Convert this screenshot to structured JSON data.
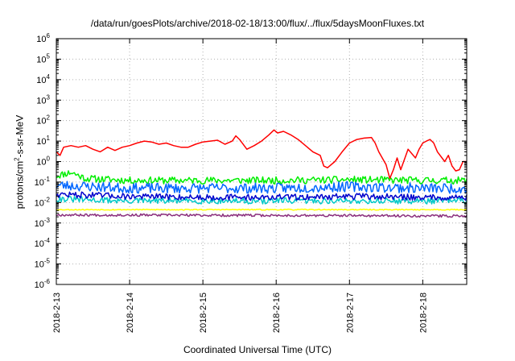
{
  "chart_data": {
    "type": "line",
    "title": "/data/run/goesPlots/archive/2018-02-18/13:00/flux/../flux/5daysMoonFluxes.txt",
    "xlabel": "Coordinated Universal Time (UTC)",
    "ylabel": {
      "prefix": "protons/cm",
      "sup": "2",
      "suffix": "-s-sr-MeV"
    },
    "xlim": [
      0,
      5.6
    ],
    "ylim": [
      1e-06,
      1000000.0
    ],
    "yscale": "log",
    "grid": true,
    "x_ticks": [
      {
        "x": 0,
        "label": "2018-2-13"
      },
      {
        "x": 1,
        "label": "2018-2-14"
      },
      {
        "x": 2,
        "label": "2018-2-15"
      },
      {
        "x": 3,
        "label": "2018-2-16"
      },
      {
        "x": 4,
        "label": "2018-2-17"
      },
      {
        "x": 5,
        "label": "2018-2-18"
      }
    ],
    "y_ticks": [
      {
        "value": 1e-06,
        "base": "10",
        "exp": "-6"
      },
      {
        "value": 1e-05,
        "base": "10",
        "exp": "-5"
      },
      {
        "value": 0.0001,
        "base": "10",
        "exp": "-4"
      },
      {
        "value": 0.001,
        "base": "10",
        "exp": "-3"
      },
      {
        "value": 0.01,
        "base": "10",
        "exp": "-2"
      },
      {
        "value": 0.1,
        "base": "10",
        "exp": "-1"
      },
      {
        "value": 1,
        "base": "10",
        "exp": "0"
      },
      {
        "value": 10,
        "base": "10",
        "exp": "1"
      },
      {
        "value": 100,
        "base": "10",
        "exp": "2"
      },
      {
        "value": 1000,
        "base": "10",
        "exp": "3"
      },
      {
        "value": 10000,
        "base": "10",
        "exp": "4"
      },
      {
        "value": 100000,
        "base": "10",
        "exp": "5"
      },
      {
        "value": 1000000,
        "base": "10",
        "exp": "6"
      }
    ],
    "series": [
      {
        "color": "#ff0000",
        "points": [
          [
            0,
            3
          ],
          [
            0.05,
            2
          ],
          [
            0.1,
            5
          ],
          [
            0.2,
            6
          ],
          [
            0.3,
            5
          ],
          [
            0.4,
            6
          ],
          [
            0.5,
            4
          ],
          [
            0.6,
            3
          ],
          [
            0.7,
            5
          ],
          [
            0.8,
            3.5
          ],
          [
            0.9,
            5
          ],
          [
            1.0,
            6
          ],
          [
            1.1,
            8
          ],
          [
            1.2,
            10
          ],
          [
            1.3,
            9
          ],
          [
            1.4,
            7
          ],
          [
            1.5,
            8
          ],
          [
            1.6,
            6
          ],
          [
            1.7,
            5
          ],
          [
            1.8,
            5
          ],
          [
            1.9,
            7
          ],
          [
            2.0,
            9
          ],
          [
            2.1,
            10
          ],
          [
            2.2,
            11
          ],
          [
            2.3,
            7
          ],
          [
            2.4,
            10
          ],
          [
            2.45,
            18
          ],
          [
            2.5,
            12
          ],
          [
            2.6,
            4
          ],
          [
            2.7,
            6
          ],
          [
            2.8,
            10
          ],
          [
            2.9,
            20
          ],
          [
            2.97,
            35
          ],
          [
            3.02,
            25
          ],
          [
            3.1,
            30
          ],
          [
            3.2,
            20
          ],
          [
            3.3,
            12
          ],
          [
            3.4,
            6
          ],
          [
            3.5,
            3
          ],
          [
            3.6,
            2
          ],
          [
            3.65,
            0.6
          ],
          [
            3.7,
            0.5
          ],
          [
            3.8,
            1
          ],
          [
            3.9,
            3
          ],
          [
            4.0,
            8
          ],
          [
            4.1,
            12
          ],
          [
            4.2,
            14
          ],
          [
            4.3,
            15
          ],
          [
            4.35,
            8
          ],
          [
            4.4,
            3
          ],
          [
            4.5,
            0.7
          ],
          [
            4.55,
            0.15
          ],
          [
            4.6,
            0.4
          ],
          [
            4.65,
            1.5
          ],
          [
            4.7,
            0.4
          ],
          [
            4.8,
            4
          ],
          [
            4.9,
            1.5
          ],
          [
            4.95,
            4
          ],
          [
            5.0,
            8
          ],
          [
            5.05,
            10
          ],
          [
            5.1,
            12
          ],
          [
            5.15,
            8
          ],
          [
            5.2,
            3
          ],
          [
            5.3,
            1
          ],
          [
            5.35,
            2
          ],
          [
            5.4,
            0.6
          ],
          [
            5.45,
            0.35
          ],
          [
            5.5,
            0.4
          ],
          [
            5.55,
            1.0
          ],
          [
            5.6,
            1.0
          ]
        ]
      },
      {
        "color": "#00ee00",
        "base": [
          [
            0,
            0.2
          ],
          [
            0.2,
            0.3
          ],
          [
            0.4,
            0.15
          ],
          [
            1,
            0.12
          ],
          [
            2,
            0.12
          ],
          [
            3,
            0.12
          ],
          [
            4,
            0.13
          ],
          [
            5,
            0.12
          ],
          [
            5.6,
            0.12
          ]
        ],
        "jitter": 0.35,
        "seed": 11
      },
      {
        "color": "#0066ff",
        "base": [
          [
            0,
            0.07
          ],
          [
            0.5,
            0.06
          ],
          [
            1,
            0.05
          ],
          [
            2,
            0.05
          ],
          [
            3,
            0.05
          ],
          [
            4,
            0.06
          ],
          [
            5,
            0.05
          ],
          [
            5.6,
            0.05
          ]
        ],
        "jitter": 0.5,
        "seed": 23
      },
      {
        "color": "#00c8c8",
        "base": [
          [
            0,
            0.015
          ],
          [
            1,
            0.012
          ],
          [
            2,
            0.012
          ],
          [
            3,
            0.012
          ],
          [
            4,
            0.012
          ],
          [
            5,
            0.012
          ],
          [
            5.6,
            0.012
          ]
        ],
        "jitter": 0.3,
        "seed": 31
      },
      {
        "color": "#0000cc",
        "base": [
          [
            0,
            0.025
          ],
          [
            1,
            0.02
          ],
          [
            2,
            0.018
          ],
          [
            3,
            0.018
          ],
          [
            4,
            0.02
          ],
          [
            5,
            0.018
          ],
          [
            5.6,
            0.018
          ]
        ],
        "jitter": 0.3,
        "seed": 47
      },
      {
        "color": "#ffff00",
        "base": [
          [
            0,
            0.0045
          ],
          [
            5.6,
            0.0045
          ]
        ],
        "jitter": 0.05,
        "seed": 53
      },
      {
        "color": "#8b2f7d",
        "base": [
          [
            0,
            0.0025
          ],
          [
            5.6,
            0.0022
          ]
        ],
        "jitter": 0.12,
        "seed": 67
      }
    ]
  }
}
